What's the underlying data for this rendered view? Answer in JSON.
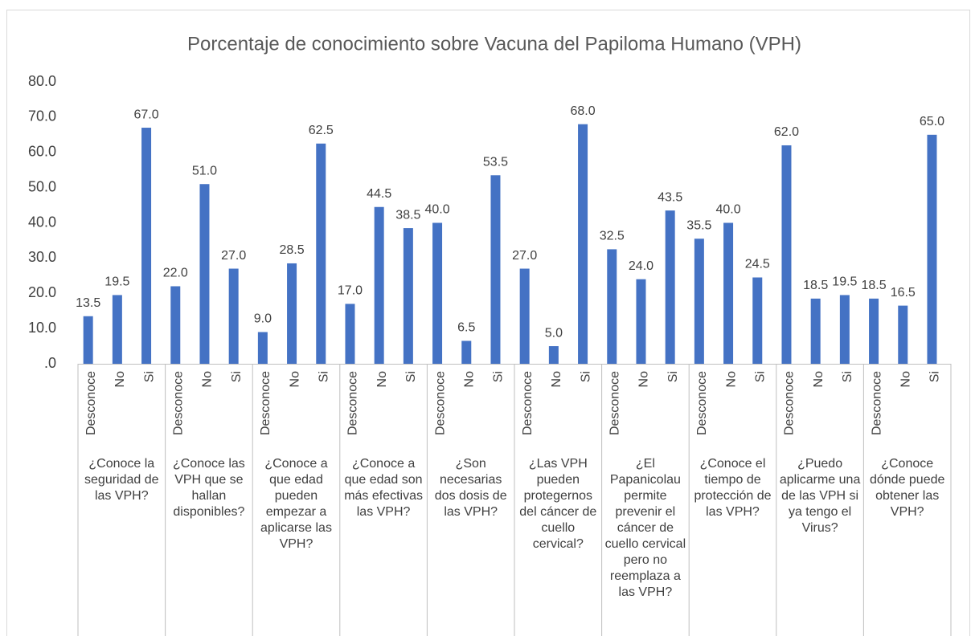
{
  "chart_data": {
    "type": "bar",
    "title": "Porcentaje de conocimiento sobre Vacuna del Papiloma Humano (VPH)",
    "color": "#4472c4",
    "ylim": [
      0,
      80
    ],
    "yticks": [
      {
        "value": 0,
        "label": ".0"
      },
      {
        "value": 10,
        "label": "10.0"
      },
      {
        "value": 20,
        "label": "20.0"
      },
      {
        "value": 30,
        "label": "30.0"
      },
      {
        "value": 40,
        "label": "40.0"
      },
      {
        "value": 50,
        "label": "50.0"
      },
      {
        "value": 60,
        "label": "60.0"
      },
      {
        "value": 70,
        "label": "70.0"
      },
      {
        "value": 80,
        "label": "80.0"
      }
    ],
    "grid": false,
    "groups": [
      {
        "label": "¿Conoce la seguridad de las VPH?",
        "categories": [
          "Desconoce",
          "No",
          "Si"
        ],
        "values": [
          13.5,
          19.5,
          67.0
        ],
        "value_labels": [
          "13.5",
          "19.5",
          "67.0"
        ]
      },
      {
        "label": "¿Conoce las VPH que se hallan disponibles?",
        "categories": [
          "Desconoce",
          "No",
          "Si"
        ],
        "values": [
          22.0,
          51.0,
          27.0
        ],
        "value_labels": [
          "22.0",
          "51.0",
          "27.0"
        ]
      },
      {
        "label": "¿Conoce a que edad pueden empezar a aplicarse las VPH?",
        "categories": [
          "Desconoce",
          "No",
          "Si"
        ],
        "values": [
          9.0,
          28.5,
          62.5
        ],
        "value_labels": [
          "9.0",
          "28.5",
          "62.5"
        ]
      },
      {
        "label": "¿Conoce a que edad son más efectivas las VPH?",
        "categories": [
          "Desconoce",
          "No",
          "Si"
        ],
        "values": [
          17.0,
          44.5,
          38.5
        ],
        "value_labels": [
          "17.0",
          "44.5",
          "38.5"
        ]
      },
      {
        "label": "¿Son necesarias dos dosis de las VPH?",
        "categories": [
          "Desconoce",
          "No",
          "Si"
        ],
        "values": [
          40.0,
          6.5,
          53.5
        ],
        "value_labels": [
          "40.0",
          "6.5",
          "53.5"
        ]
      },
      {
        "label": "¿Las VPH pueden protegernos del cáncer de cuello cervical?",
        "categories": [
          "Desconoce",
          "No",
          "Si"
        ],
        "values": [
          27.0,
          5.0,
          68.0
        ],
        "value_labels": [
          "27.0",
          "5.0",
          "68.0"
        ]
      },
      {
        "label": "¿El Papanicolau permite prevenir el cáncer de cuello cervical pero no reemplaza a las VPH?",
        "categories": [
          "Desconoce",
          "No",
          "Si"
        ],
        "values": [
          32.5,
          24.0,
          43.5
        ],
        "value_labels": [
          "32.5",
          "24.0",
          "43.5"
        ]
      },
      {
        "label": "¿Conoce el tiempo de protección de las VPH?",
        "categories": [
          "Desconoce",
          "No",
          "Si"
        ],
        "values": [
          35.5,
          40.0,
          24.5
        ],
        "value_labels": [
          "35.5",
          "40.0",
          "24.5"
        ]
      },
      {
        "label": "¿Puedo aplicarme una de las VPH si ya tengo el Virus?",
        "categories": [
          "Desconoce",
          "No",
          "Si"
        ],
        "values": [
          62.0,
          18.5,
          19.5
        ],
        "value_labels": [
          "62.0",
          "18.5",
          "19.5"
        ]
      },
      {
        "label": "¿Conoce dónde puede obtener las VPH?",
        "categories": [
          "Desconoce",
          "No",
          "Si"
        ],
        "values": [
          18.5,
          16.5,
          65.0
        ],
        "value_labels": [
          "18.5",
          "16.5",
          "65.0"
        ]
      }
    ]
  }
}
